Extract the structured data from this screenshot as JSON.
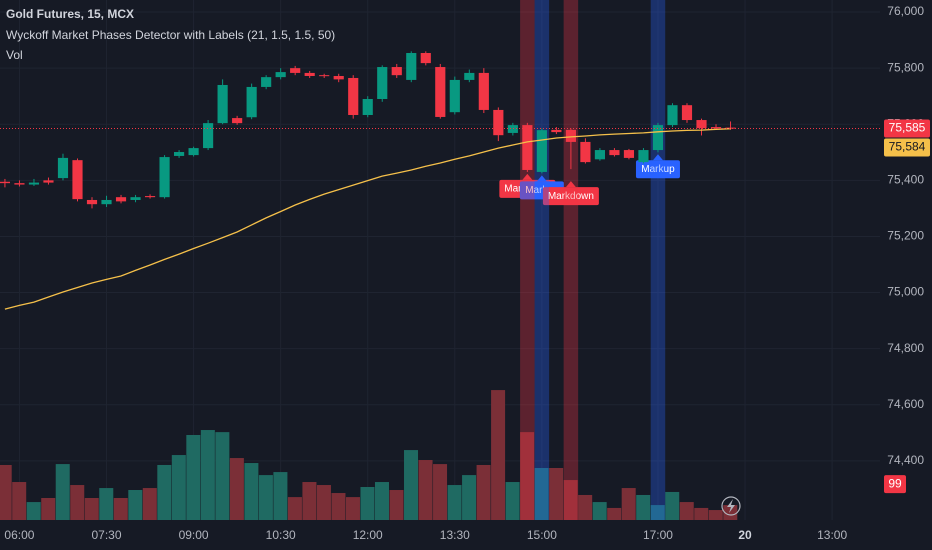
{
  "chart_data": {
    "type": "candlestick",
    "title": "Gold Futures, 15, MCX",
    "indicator": "Wyckoff Market Phases Detector with Labels (21, 1.5, 1.5, 50)",
    "volume_title": "Vol",
    "xlim": [
      -0.34,
      60.3
    ],
    "xticks": [
      {
        "value": 1,
        "label": "06:00"
      },
      {
        "value": 7,
        "label": "07:30"
      },
      {
        "value": 13,
        "label": "09:00"
      },
      {
        "value": 19,
        "label": "10:30"
      },
      {
        "value": 25,
        "label": "12:00"
      },
      {
        "value": 31,
        "label": "13:30"
      },
      {
        "value": 37,
        "label": "15:00"
      },
      {
        "value": 45,
        "label": "17:00"
      },
      {
        "value": 51,
        "label": "20"
      },
      {
        "value": 57,
        "label": "13:00"
      }
    ],
    "ylim": [
      74189,
      76043
    ],
    "yticks": [
      {
        "value": 76000,
        "label": "76,000"
      },
      {
        "value": 75800,
        "label": "75,800"
      },
      {
        "value": 75600,
        "label": "75,600"
      },
      {
        "value": 75400,
        "label": "75,400"
      },
      {
        "value": 75200,
        "label": "75,200"
      },
      {
        "value": 75000,
        "label": "75,000"
      },
      {
        "value": 74800,
        "label": "74,800"
      },
      {
        "value": 74600,
        "label": "74,600"
      },
      {
        "value": 74400,
        "label": "74,400"
      }
    ],
    "grid": true,
    "up_color": "#089981",
    "down_color": "#f23645",
    "volume_up_color": "#1f6a62",
    "volume_down_color": "#7b2f37",
    "candles": {
      "open": [
        75395,
        75390,
        75385,
        75400,
        75408,
        75472,
        75330,
        75315,
        75340,
        75330,
        75344,
        75340,
        75487,
        75490,
        75515,
        75604,
        75622,
        75625,
        75733,
        75768,
        75800,
        75783,
        75775,
        75772,
        75765,
        75633,
        75690,
        75804,
        75758,
        75854,
        75804,
        75643,
        75758,
        75783,
        75651,
        75569,
        75597,
        75430,
        75580,
        75580,
        75537,
        75475,
        75508,
        75508,
        75465,
        75508,
        75597,
        75668,
        75615,
        75590,
        75588
      ],
      "high": [
        75405,
        75400,
        75405,
        75410,
        75495,
        75478,
        75340,
        75345,
        75348,
        75348,
        75350,
        75490,
        75508,
        75520,
        75615,
        75760,
        75630,
        75745,
        75775,
        75800,
        75808,
        75790,
        75780,
        75780,
        75775,
        75700,
        75810,
        75815,
        75860,
        75860,
        75815,
        75770,
        75795,
        75800,
        75660,
        75605,
        75605,
        75585,
        75590,
        75585,
        75550,
        75515,
        75515,
        75512,
        75515,
        75605,
        75675,
        75675,
        75620,
        75600,
        75610
      ],
      "low": [
        75375,
        75378,
        75380,
        75385,
        75400,
        75325,
        75300,
        75305,
        75318,
        75322,
        75335,
        75335,
        75480,
        75485,
        75508,
        75600,
        75598,
        75618,
        75725,
        75760,
        75775,
        75765,
        75765,
        75750,
        75620,
        75625,
        75680,
        75765,
        75750,
        75810,
        75620,
        75635,
        75750,
        75640,
        75540,
        75560,
        75430,
        75425,
        75565,
        75440,
        75460,
        75470,
        75485,
        75475,
        75460,
        75500,
        75590,
        75605,
        75560,
        75580,
        75580
      ],
      "close": [
        75390,
        75385,
        75392,
        75392,
        75480,
        75333,
        75315,
        75330,
        75325,
        75340,
        75340,
        75483,
        75501,
        75515,
        75604,
        75740,
        75604,
        75733,
        75768,
        75786,
        75783,
        75772,
        75772,
        75760,
        75633,
        75690,
        75804,
        75775,
        75854,
        75818,
        75626,
        75758,
        75783,
        75651,
        75561,
        75597,
        75437,
        75579,
        75572,
        75537,
        75465,
        75508,
        75490,
        75480,
        75508,
        75597,
        75668,
        75615,
        75586,
        75586,
        75585
      ]
    },
    "ema": {
      "color": "#f5c04a",
      "values": [
        74941,
        74954,
        74966,
        74984,
        75002,
        75018,
        75034,
        75047,
        75059,
        75079,
        75098,
        75118,
        75137,
        75157,
        75176,
        75196,
        75216,
        75241,
        75266,
        75289,
        75312,
        75332,
        75351,
        75367,
        75383,
        75399,
        75415,
        75426,
        75437,
        75450,
        75462,
        75475,
        75487,
        75501,
        75515,
        75526,
        75537,
        75544,
        75551,
        75555,
        75558,
        75562,
        75565,
        75567,
        75569,
        75573,
        75576,
        75578,
        75579,
        75582,
        75584
      ]
    },
    "volume": [
      365,
      252,
      119,
      146,
      371,
      232,
      146,
      212,
      146,
      199,
      212,
      365,
      431,
      564,
      597,
      583,
      411,
      378,
      298,
      318,
      152,
      252,
      232,
      179,
      152,
      219,
      252,
      199,
      464,
      398,
      371,
      232,
      298,
      365,
      862,
      252,
      583,
      345,
      345,
      265,
      166,
      119,
      80,
      212,
      166,
      99,
      186,
      119,
      80,
      66,
      99
    ],
    "vlim": [
      0,
      3450
    ],
    "last_labels": {
      "close": "75,585",
      "ema": "75,584"
    },
    "phases": [
      {
        "index": 36,
        "label": "Markdown",
        "color": "#f23645"
      },
      {
        "index": 37,
        "label": "Markup",
        "color": "#2962ff"
      },
      {
        "index": 39,
        "label": "Markdown",
        "color": "#f23645"
      },
      {
        "index": 45,
        "label": "Markup",
        "color": "#2962ff"
      }
    ]
  }
}
